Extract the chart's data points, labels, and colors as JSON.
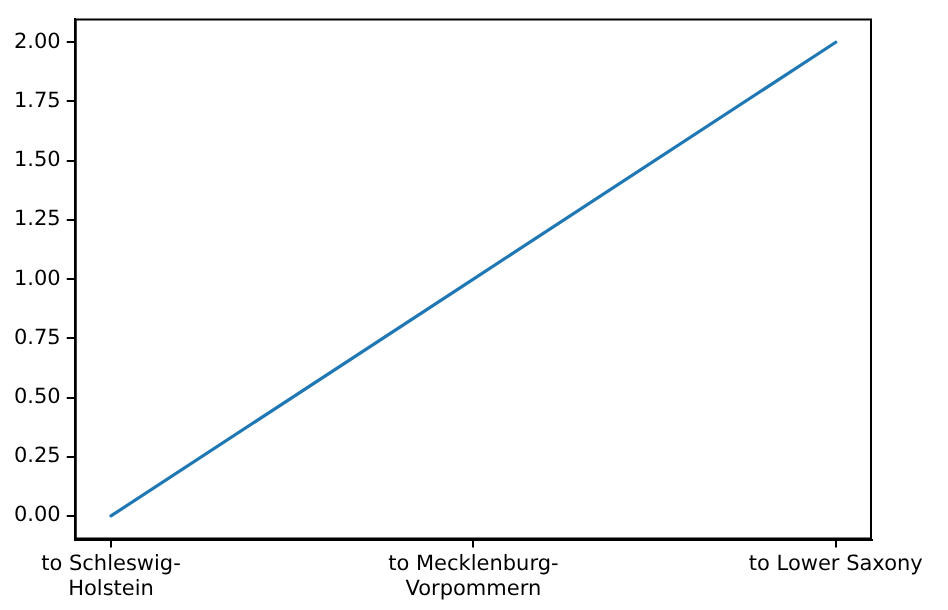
{
  "chart_data": {
    "type": "line",
    "categories": [
      "to Schleswig-Holstein",
      "to Mecklenburg-Vorpommern",
      "to Lower Saxony"
    ],
    "series": [
      {
        "color": "#1f77b4",
        "values": [
          0,
          1,
          2
        ]
      }
    ],
    "ylim": [
      -0.1,
      2.1
    ],
    "yticks": [
      {
        "value": 0,
        "label": "0.00"
      },
      {
        "value": 0.25,
        "label": "0.25"
      },
      {
        "value": 0.5,
        "label": "0.50"
      },
      {
        "value": 0.75,
        "label": "0.75"
      },
      {
        "value": 1,
        "label": "1.00"
      },
      {
        "value": 1.25,
        "label": "1.25"
      },
      {
        "value": 1.5,
        "label": "1.50"
      },
      {
        "value": 1.75,
        "label": "1.75"
      },
      {
        "value": 2,
        "label": "2.00"
      }
    ],
    "grid": false,
    "legend": false,
    "marker": "none",
    "line_style": "solid"
  }
}
